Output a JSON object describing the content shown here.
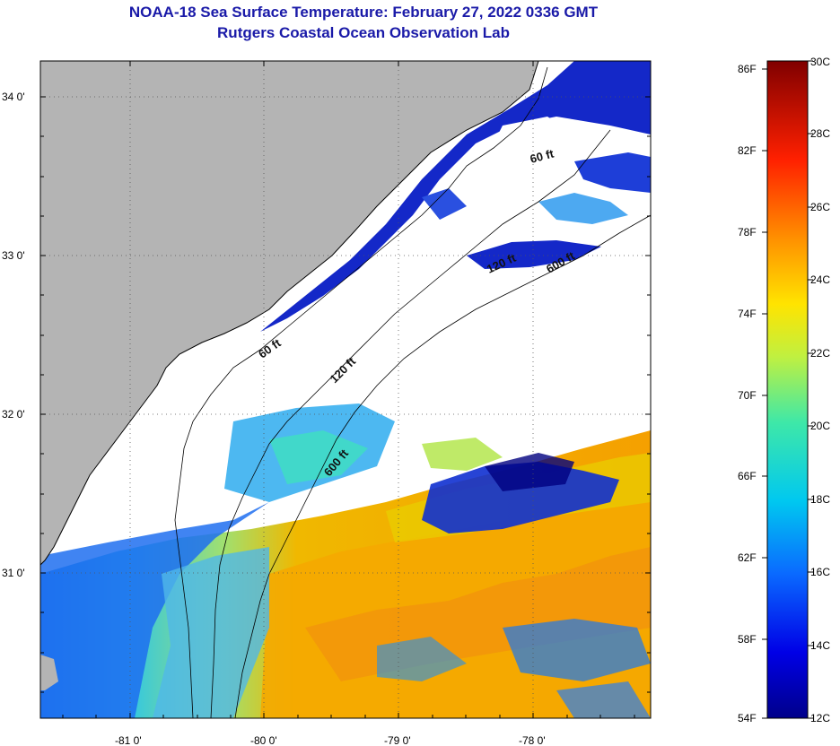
{
  "header": {
    "title": "NOAA-18 Sea Surface Temperature:  February 27, 2022 0336 GMT",
    "subtitle": "Rutgers Coastal Ocean Observation Lab"
  },
  "axes": {
    "lat_labels": [
      "34 0'",
      "33 0'",
      "32 0'",
      "31 0'"
    ],
    "lon_labels": [
      "-81 0'",
      "-80 0'",
      "-79 0'",
      "-78 0'"
    ]
  },
  "isobaths": {
    "shallow": "60 ft",
    "mid": "120 ft",
    "deep": "600 ft"
  },
  "colorbar": {
    "fahrenheit": [
      "86F",
      "82F",
      "78F",
      "74F",
      "70F",
      "66F",
      "62F",
      "58F",
      "54F"
    ],
    "celsius": [
      "30C",
      "28C",
      "26C",
      "24C",
      "22C",
      "20C",
      "18C",
      "16C",
      "14C",
      "12C"
    ]
  },
  "colors": {
    "land": "#b4b4b4",
    "cloud": "#ffffff",
    "title": "#1a1aa8"
  }
}
